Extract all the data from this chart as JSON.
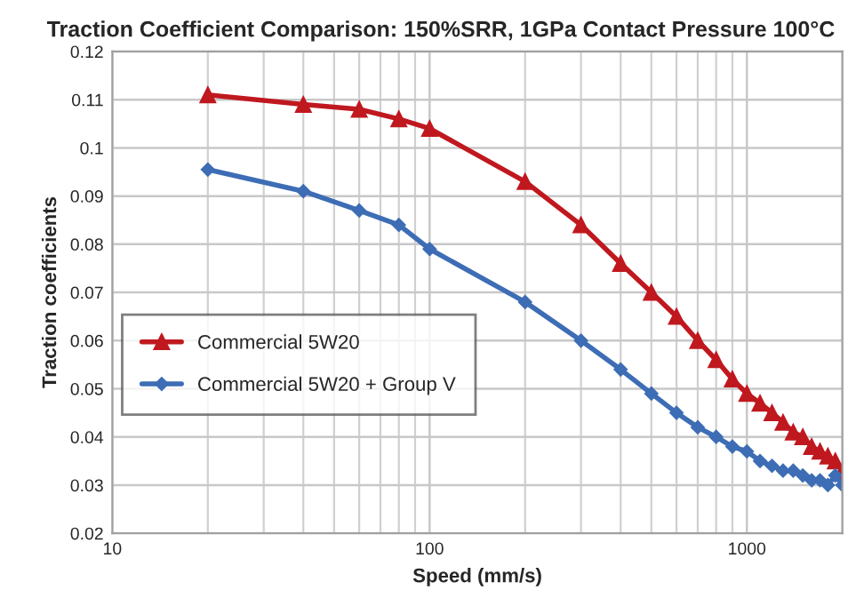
{
  "chart_data": {
    "type": "line",
    "title": "Traction Coefficient Comparison: 150%SRR, 1GPa Contact Pressure 100°C",
    "xlabel": "Speed (mm/s)",
    "ylabel": "Traction coefficients",
    "log": "x",
    "xlim": [
      10,
      2000
    ],
    "xticks": [
      10,
      100,
      1000
    ],
    "ylim": [
      0.02,
      0.12
    ],
    "yticks": [
      0.02,
      0.03,
      0.04,
      0.05,
      0.06,
      0.07,
      0.08,
      0.09,
      0.1,
      0.11,
      0.12
    ],
    "grid": true,
    "legend": "left",
    "x": [
      20,
      40,
      60,
      80,
      100,
      200,
      300,
      400,
      500,
      600,
      700,
      800,
      900,
      1000,
      1100,
      1200,
      1300,
      1400,
      1500,
      1600,
      1700,
      1800,
      1900,
      2000
    ],
    "series": [
      {
        "name": "Commercial 5W20",
        "color": "#c0181f",
        "marker": "triangle",
        "values": [
          0.111,
          0.109,
          0.108,
          0.106,
          0.104,
          0.093,
          0.084,
          0.076,
          0.07,
          0.065,
          0.06,
          0.056,
          0.052,
          0.049,
          0.047,
          0.045,
          0.043,
          0.041,
          0.04,
          0.038,
          0.037,
          0.036,
          0.035,
          0.033
        ]
      },
      {
        "name": "Commercial 5W20 + Group V",
        "color": "#3d6db5",
        "marker": "diamond",
        "values": [
          0.0955,
          0.091,
          0.087,
          0.084,
          0.079,
          0.068,
          0.06,
          0.054,
          0.049,
          0.045,
          0.042,
          0.04,
          0.038,
          0.037,
          0.035,
          0.034,
          0.033,
          0.033,
          0.032,
          0.031,
          0.031,
          0.03,
          0.032,
          0.03
        ]
      }
    ]
  }
}
